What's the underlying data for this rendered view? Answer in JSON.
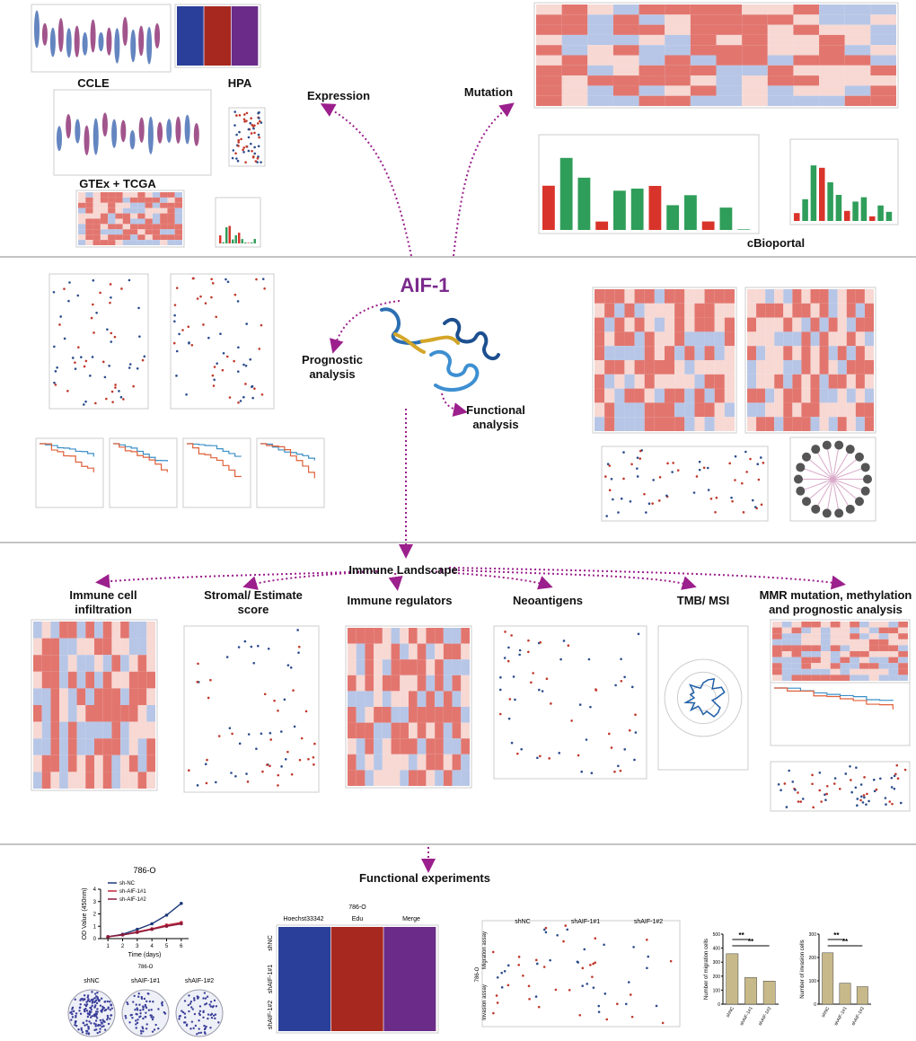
{
  "top": {
    "ccle": "CCLE",
    "hpa": "HPA",
    "gtex": "GTEx + TCGA",
    "cbio": "cBioportal",
    "expression": "Expression",
    "mutation": "Mutation"
  },
  "center": {
    "title": "AIF-1",
    "prognostic": "Prognostic analysis",
    "functional": "Functional analysis"
  },
  "immune": {
    "title": "Immune Landscape",
    "items": [
      "Immune cell infiltration",
      "Stromal/ Estimate score",
      "Immune regulators",
      "Neoantigens",
      "TMB/ MSI",
      "MMR mutation, methylation and prognostic analysis"
    ]
  },
  "experiments": {
    "title": "Functional experiments",
    "proliferation": {
      "type": "line",
      "title": "786-O",
      "ylabel": "OD Value (450nm)",
      "xlabel": "Time (days)",
      "x": [
        1,
        2,
        3,
        4,
        5,
        6
      ],
      "xlim": [
        0.5,
        6.5
      ],
      "xticks": [
        1,
        2,
        3,
        4,
        5,
        6
      ],
      "ylim": [
        0,
        4
      ],
      "yticks": [
        0,
        1,
        2,
        3,
        4
      ],
      "series": [
        {
          "name": "sh-NC",
          "color": "#1f3a7a",
          "values": [
            0.15,
            0.35,
            0.75,
            1.2,
            1.9,
            2.85
          ]
        },
        {
          "name": "sh-AIF-1#1",
          "color": "#c0283a",
          "values": [
            0.15,
            0.3,
            0.55,
            0.8,
            1.1,
            1.3
          ]
        },
        {
          "name": "sh-AIF-1#2",
          "color": "#8b1a3a",
          "values": [
            0.15,
            0.3,
            0.5,
            0.75,
            1.0,
            1.2
          ]
        }
      ]
    },
    "colony": {
      "title": "786-O",
      "groups": [
        "shNC",
        "shAIF-1#1",
        "shAIF-1#2"
      ]
    },
    "edu": {
      "title": "786-O",
      "columns": [
        "Hoechst33342",
        "Edu",
        "Merge"
      ],
      "rows": [
        "shNC",
        "shAIF-1#1",
        "shAIF-1#2"
      ]
    },
    "transwell": {
      "cell_line": "786-O",
      "columns": [
        "shNC",
        "shAIF-1#1",
        "shAIF-1#2"
      ],
      "rows": [
        "Migration assay",
        "Invasion assay"
      ]
    },
    "migration": {
      "type": "bar",
      "ylabel": "Number of migration cells",
      "categories": [
        "shNC",
        "shAIF-1#1",
        "shAIF-1#2"
      ],
      "values": [
        360,
        190,
        165
      ],
      "color": "#c8b98a",
      "ylim": [
        0,
        500
      ],
      "yticks": [
        0,
        100,
        200,
        300,
        400,
        500
      ],
      "significance": [
        "**",
        "**"
      ]
    },
    "invasion": {
      "type": "bar",
      "ylabel": "Number of invasion cells",
      "categories": [
        "shNC",
        "shAIF-1#1",
        "shAIF-1#2"
      ],
      "values": [
        220,
        90,
        75
      ],
      "color": "#c8b98a",
      "ylim": [
        0,
        300
      ],
      "yticks": [
        0,
        100,
        200,
        300
      ],
      "significance": [
        "**",
        "**"
      ]
    }
  }
}
